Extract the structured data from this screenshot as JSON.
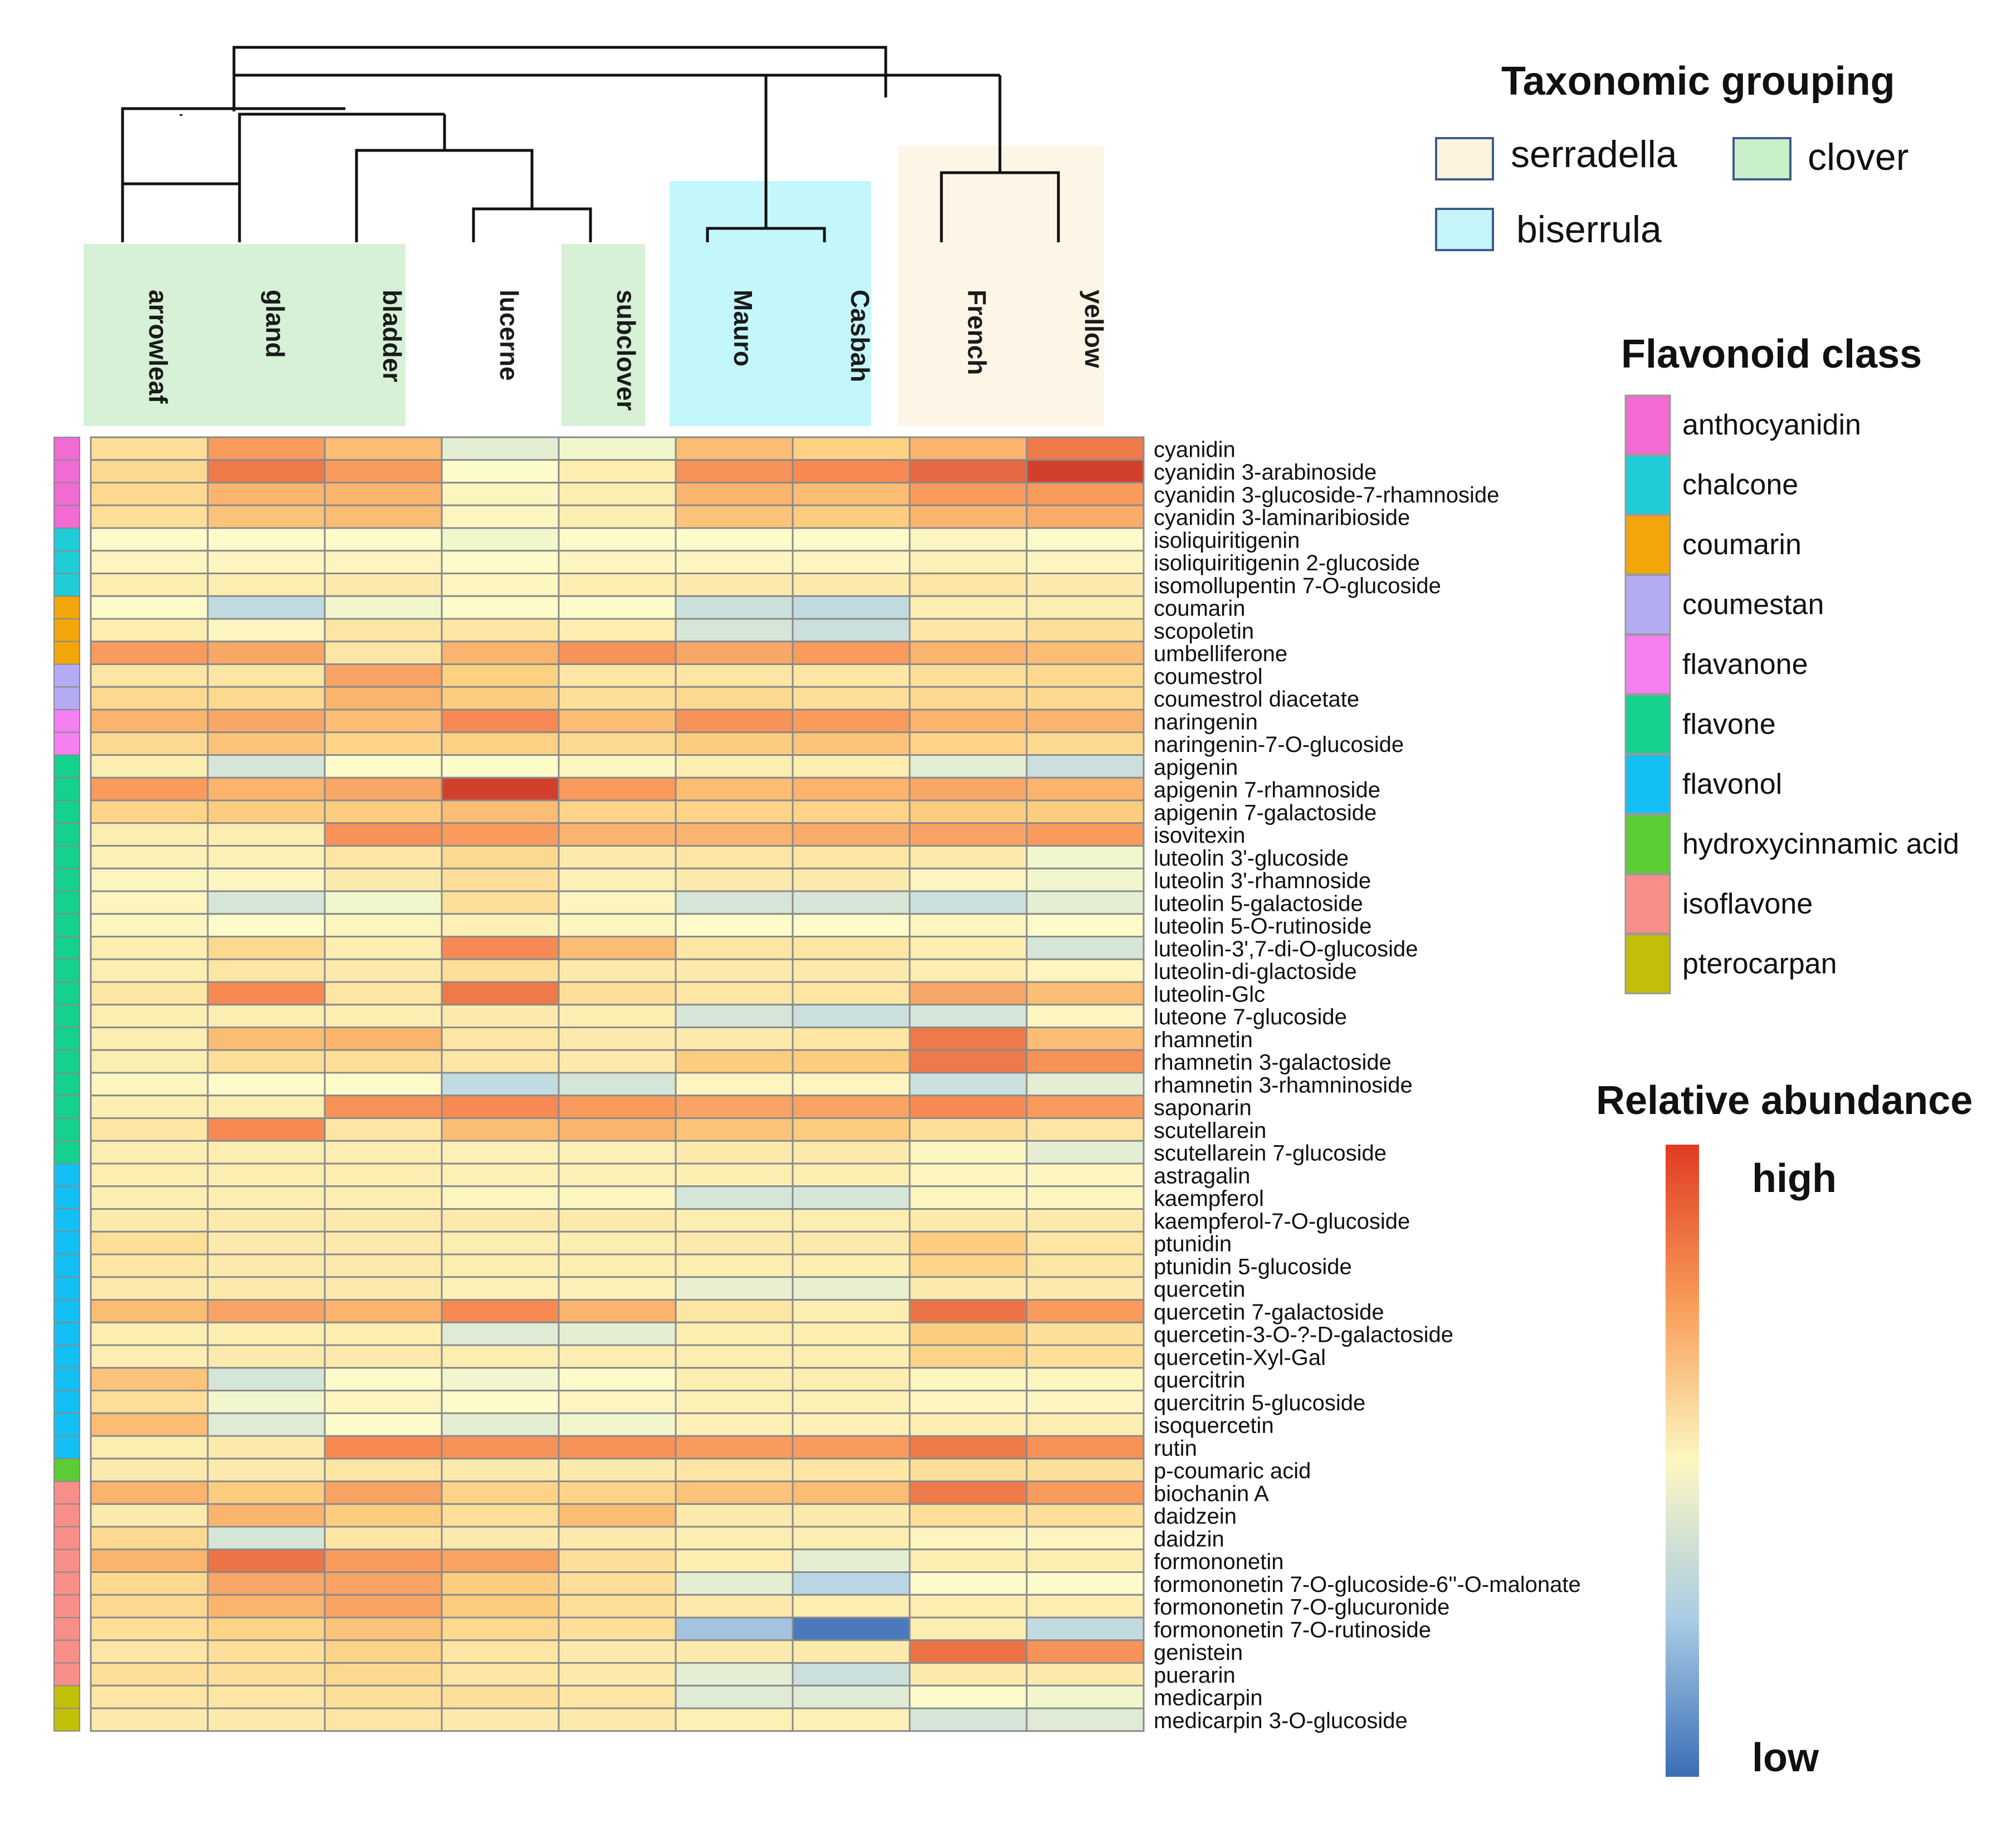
{
  "chart_data": {
    "type": "heatmap",
    "columns": [
      "arrowleaf",
      "gland",
      "bladder",
      "lucerne",
      "subclover",
      "Mauro",
      "Casbah",
      "French",
      "yellow"
    ],
    "column_groups": [
      "clover",
      "clover",
      "clover",
      "none",
      "clover",
      "biserrula",
      "biserrula",
      "serradella",
      "serradella"
    ],
    "rows": [
      {
        "name": "cyanidin",
        "class": "anthocyanidin",
        "values": [
          0.6,
          0.78,
          0.7,
          0.45,
          0.48,
          0.7,
          0.65,
          0.72,
          0.85
        ]
      },
      {
        "name": "cyanidin 3-arabinoside",
        "class": "anthocyanidin",
        "values": [
          0.62,
          0.85,
          0.78,
          0.5,
          0.55,
          0.8,
          0.82,
          0.88,
          0.95
        ]
      },
      {
        "name": "cyanidin 3-glucoside-7-rhamnoside",
        "class": "anthocyanidin",
        "values": [
          0.62,
          0.72,
          0.72,
          0.52,
          0.55,
          0.72,
          0.7,
          0.78,
          0.78
        ]
      },
      {
        "name": "cyanidin 3-laminaribioside",
        "class": "anthocyanidin",
        "values": [
          0.6,
          0.68,
          0.7,
          0.52,
          0.55,
          0.68,
          0.66,
          0.72,
          0.74
        ]
      },
      {
        "name": "isoliquiritigenin",
        "class": "chalcone",
        "values": [
          0.5,
          0.5,
          0.5,
          0.48,
          0.5,
          0.5,
          0.5,
          0.52,
          0.5
        ]
      },
      {
        "name": "isoliquiritigenin 2-glucoside",
        "class": "chalcone",
        "values": [
          0.52,
          0.52,
          0.52,
          0.5,
          0.52,
          0.52,
          0.52,
          0.54,
          0.52
        ]
      },
      {
        "name": "isomollupentin 7-O-glucoside",
        "class": "chalcone",
        "values": [
          0.55,
          0.55,
          0.56,
          0.52,
          0.55,
          0.56,
          0.56,
          0.58,
          0.56
        ]
      },
      {
        "name": "coumarin",
        "class": "coumarin",
        "values": [
          0.5,
          0.38,
          0.48,
          0.5,
          0.5,
          0.4,
          0.38,
          0.55,
          0.55
        ]
      },
      {
        "name": "scopoletin",
        "class": "coumarin",
        "values": [
          0.55,
          0.52,
          0.58,
          0.58,
          0.55,
          0.42,
          0.4,
          0.58,
          0.6
        ]
      },
      {
        "name": "umbelliferone",
        "class": "coumarin",
        "values": [
          0.78,
          0.75,
          0.58,
          0.72,
          0.8,
          0.75,
          0.78,
          0.72,
          0.7
        ]
      },
      {
        "name": "coumestrol",
        "class": "coumestan",
        "values": [
          0.58,
          0.58,
          0.76,
          0.65,
          0.58,
          0.58,
          0.58,
          0.6,
          0.62
        ]
      },
      {
        "name": "coumestrol diacetate",
        "class": "coumestan",
        "values": [
          0.62,
          0.62,
          0.72,
          0.66,
          0.6,
          0.62,
          0.6,
          0.62,
          0.62
        ]
      },
      {
        "name": "naringenin",
        "class": "flavanone",
        "values": [
          0.72,
          0.75,
          0.7,
          0.82,
          0.7,
          0.8,
          0.78,
          0.72,
          0.72
        ]
      },
      {
        "name": "naringenin-7-O-glucoside",
        "class": "flavanone",
        "values": [
          0.62,
          0.68,
          0.64,
          0.65,
          0.62,
          0.66,
          0.68,
          0.64,
          0.62
        ]
      },
      {
        "name": "apigenin",
        "class": "flavone",
        "values": [
          0.55,
          0.42,
          0.5,
          0.5,
          0.52,
          0.55,
          0.55,
          0.45,
          0.4
        ]
      },
      {
        "name": "apigenin 7-rhamnoside",
        "class": "flavone",
        "values": [
          0.78,
          0.72,
          0.75,
          0.95,
          0.78,
          0.7,
          0.72,
          0.75,
          0.72
        ]
      },
      {
        "name": "apigenin 7-galactoside",
        "class": "flavone",
        "values": [
          0.64,
          0.66,
          0.66,
          0.7,
          0.64,
          0.64,
          0.64,
          0.66,
          0.66
        ]
      },
      {
        "name": "isovitexin",
        "class": "flavone",
        "values": [
          0.55,
          0.55,
          0.8,
          0.78,
          0.72,
          0.72,
          0.74,
          0.76,
          0.78
        ]
      },
      {
        "name": "luteolin 3'-glucoside",
        "class": "flavone",
        "values": [
          0.54,
          0.54,
          0.58,
          0.62,
          0.56,
          0.58,
          0.58,
          0.56,
          0.48
        ]
      },
      {
        "name": "luteolin 3'-rhamnoside",
        "class": "flavone",
        "values": [
          0.52,
          0.52,
          0.56,
          0.6,
          0.54,
          0.56,
          0.56,
          0.52,
          0.48
        ]
      },
      {
        "name": "luteolin 5-galactoside",
        "class": "flavone",
        "values": [
          0.52,
          0.42,
          0.48,
          0.6,
          0.52,
          0.42,
          0.42,
          0.4,
          0.45
        ]
      },
      {
        "name": "luteolin 5-O-rutinoside",
        "class": "flavone",
        "values": [
          0.52,
          0.5,
          0.52,
          0.54,
          0.52,
          0.5,
          0.5,
          0.52,
          0.5
        ]
      },
      {
        "name": "luteolin-3',7-di-O-glucoside",
        "class": "flavone",
        "values": [
          0.55,
          0.62,
          0.55,
          0.82,
          0.7,
          0.58,
          0.58,
          0.55,
          0.42
        ]
      },
      {
        "name": "luteolin-di-glactoside",
        "class": "flavone",
        "values": [
          0.55,
          0.58,
          0.56,
          0.6,
          0.56,
          0.56,
          0.56,
          0.55,
          0.52
        ]
      },
      {
        "name": "luteolin-Glc",
        "class": "flavone",
        "values": [
          0.58,
          0.82,
          0.58,
          0.85,
          0.6,
          0.58,
          0.58,
          0.75,
          0.7
        ]
      },
      {
        "name": "luteone 7-glucoside",
        "class": "flavone",
        "values": [
          0.55,
          0.55,
          0.55,
          0.56,
          0.55,
          0.42,
          0.4,
          0.42,
          0.52
        ]
      },
      {
        "name": "rhamnetin",
        "class": "flavone",
        "values": [
          0.55,
          0.7,
          0.72,
          0.58,
          0.56,
          0.56,
          0.58,
          0.85,
          0.7
        ]
      },
      {
        "name": "rhamnetin 3-galactoside",
        "class": "flavone",
        "values": [
          0.55,
          0.6,
          0.6,
          0.58,
          0.56,
          0.66,
          0.66,
          0.85,
          0.8
        ]
      },
      {
        "name": "rhamnetin 3-rhamninoside",
        "class": "flavone",
        "values": [
          0.52,
          0.5,
          0.5,
          0.38,
          0.42,
          0.52,
          0.52,
          0.4,
          0.45
        ]
      },
      {
        "name": "saponarin",
        "class": "flavone",
        "values": [
          0.55,
          0.55,
          0.8,
          0.82,
          0.78,
          0.76,
          0.76,
          0.82,
          0.78
        ]
      },
      {
        "name": "scutellarein",
        "class": "flavone",
        "values": [
          0.58,
          0.82,
          0.58,
          0.7,
          0.72,
          0.68,
          0.66,
          0.6,
          0.58
        ]
      },
      {
        "name": "scutellarein 7-glucoside",
        "class": "flavone",
        "values": [
          0.55,
          0.55,
          0.55,
          0.54,
          0.54,
          0.56,
          0.56,
          0.52,
          0.45
        ]
      },
      {
        "name": "astragalin",
        "class": "flavonol",
        "values": [
          0.55,
          0.55,
          0.55,
          0.54,
          0.54,
          0.55,
          0.55,
          0.52,
          0.52
        ]
      },
      {
        "name": "kaempferol",
        "class": "flavonol",
        "values": [
          0.55,
          0.55,
          0.55,
          0.52,
          0.52,
          0.42,
          0.42,
          0.52,
          0.52
        ]
      },
      {
        "name": "kaempferol-7-O-glucoside",
        "class": "flavonol",
        "values": [
          0.56,
          0.56,
          0.56,
          0.56,
          0.56,
          0.55,
          0.55,
          0.56,
          0.56
        ]
      },
      {
        "name": "ptunidin",
        "class": "flavonol",
        "values": [
          0.6,
          0.56,
          0.56,
          0.55,
          0.55,
          0.56,
          0.56,
          0.66,
          0.58
        ]
      },
      {
        "name": "ptunidin 5-glucoside",
        "class": "flavonol",
        "values": [
          0.58,
          0.56,
          0.56,
          0.55,
          0.55,
          0.55,
          0.55,
          0.64,
          0.58
        ]
      },
      {
        "name": "quercetin",
        "class": "flavonol",
        "values": [
          0.56,
          0.56,
          0.56,
          0.54,
          0.54,
          0.46,
          0.46,
          0.56,
          0.56
        ]
      },
      {
        "name": "quercetin 7-galactoside",
        "class": "flavonol",
        "values": [
          0.7,
          0.76,
          0.72,
          0.82,
          0.72,
          0.58,
          0.55,
          0.86,
          0.78
        ]
      },
      {
        "name": "quercetin-3-O-?-D-galactoside",
        "class": "flavonol",
        "values": [
          0.55,
          0.55,
          0.55,
          0.44,
          0.45,
          0.55,
          0.55,
          0.66,
          0.6
        ]
      },
      {
        "name": "quercetin-Xyl-Gal",
        "class": "flavonol",
        "values": [
          0.55,
          0.56,
          0.56,
          0.55,
          0.55,
          0.55,
          0.55,
          0.64,
          0.6
        ]
      },
      {
        "name": "quercitrin",
        "class": "flavonol",
        "values": [
          0.68,
          0.42,
          0.5,
          0.48,
          0.5,
          0.55,
          0.55,
          0.52,
          0.52
        ]
      },
      {
        "name": "quercitrin 5-glucoside",
        "class": "flavonol",
        "values": [
          0.6,
          0.48,
          0.52,
          0.5,
          0.52,
          0.54,
          0.54,
          0.52,
          0.52
        ]
      },
      {
        "name": "isoquercetin",
        "class": "flavonol",
        "values": [
          0.7,
          0.44,
          0.5,
          0.45,
          0.48,
          0.54,
          0.54,
          0.55,
          0.55
        ]
      },
      {
        "name": "rutin",
        "class": "flavonol",
        "values": [
          0.55,
          0.56,
          0.82,
          0.8,
          0.8,
          0.78,
          0.78,
          0.85,
          0.8
        ]
      },
      {
        "name": "p-coumaric acid",
        "class": "hydroxycinnamic acid",
        "values": [
          0.56,
          0.56,
          0.58,
          0.56,
          0.56,
          0.58,
          0.58,
          0.6,
          0.6
        ]
      },
      {
        "name": "biochanin A",
        "class": "isoflavone",
        "values": [
          0.72,
          0.66,
          0.76,
          0.64,
          0.64,
          0.68,
          0.7,
          0.85,
          0.78
        ]
      },
      {
        "name": "daidzein",
        "class": "isoflavone",
        "values": [
          0.56,
          0.72,
          0.66,
          0.6,
          0.7,
          0.56,
          0.56,
          0.6,
          0.6
        ]
      },
      {
        "name": "daidzin",
        "class": "isoflavone",
        "values": [
          0.62,
          0.42,
          0.58,
          0.56,
          0.56,
          0.55,
          0.55,
          0.52,
          0.52
        ]
      },
      {
        "name": "formononetin",
        "class": "isoflavone",
        "values": [
          0.72,
          0.86,
          0.78,
          0.76,
          0.6,
          0.55,
          0.45,
          0.55,
          0.55
        ]
      },
      {
        "name": "formononetin 7-O-glucoside-6''-O-malonate",
        "class": "isoflavone",
        "values": [
          0.62,
          0.75,
          0.76,
          0.66,
          0.6,
          0.45,
          0.36,
          0.5,
          0.5
        ]
      },
      {
        "name": "formononetin 7-O-glucuronide",
        "class": "isoflavone",
        "values": [
          0.62,
          0.72,
          0.76,
          0.66,
          0.6,
          0.56,
          0.55,
          0.55,
          0.55
        ]
      },
      {
        "name": "formononetin 7-O-rutinoside",
        "class": "isoflavone",
        "values": [
          0.6,
          0.64,
          0.68,
          0.62,
          0.6,
          0.3,
          0.05,
          0.55,
          0.38
        ]
      },
      {
        "name": "genistein",
        "class": "isoflavone",
        "values": [
          0.58,
          0.6,
          0.64,
          0.58,
          0.56,
          0.56,
          0.56,
          0.86,
          0.8
        ]
      },
      {
        "name": "puerarin",
        "class": "isoflavone",
        "values": [
          0.6,
          0.6,
          0.62,
          0.58,
          0.56,
          0.45,
          0.4,
          0.56,
          0.56
        ]
      },
      {
        "name": "medicarpin",
        "class": "pterocarpan",
        "values": [
          0.58,
          0.58,
          0.6,
          0.6,
          0.58,
          0.44,
          0.44,
          0.5,
          0.48
        ]
      },
      {
        "name": "medicarpin 3-O-glucoside",
        "class": "pterocarpan",
        "values": [
          0.56,
          0.56,
          0.58,
          0.56,
          0.56,
          0.54,
          0.54,
          0.42,
          0.44
        ]
      }
    ]
  },
  "legends": {
    "taxonomic": {
      "title": "Taxonomic grouping",
      "items": [
        {
          "label": "serradella",
          "color": "#fdf3dc"
        },
        {
          "label": "clover",
          "color": "#c8efc8"
        },
        {
          "label": "biserrula",
          "color": "#c4f5fa"
        }
      ]
    },
    "flavonoid": {
      "title": "Flavonoid class",
      "items": [
        {
          "label": "anthocyanidin",
          "color": "#f26ad3"
        },
        {
          "label": "chalcone",
          "color": "#1ecdd8"
        },
        {
          "label": "coumarin",
          "color": "#f3a60a"
        },
        {
          "label": "coumestan",
          "color": "#b3acf5"
        },
        {
          "label": "flavanone",
          "color": "#f47ff1"
        },
        {
          "label": "flavone",
          "color": "#14d18d"
        },
        {
          "label": "flavonol",
          "color": "#12c0f6"
        },
        {
          "label": "hydroxycinnamic acid",
          "color": "#5acd34"
        },
        {
          "label": "isoflavone",
          "color": "#f88e88"
        },
        {
          "label": "pterocarpan",
          "color": "#c2bf08"
        }
      ]
    },
    "abundance": {
      "title": "Relative abundance",
      "high_label": "high",
      "low_label": "low"
    }
  },
  "colors": {
    "group_bg": {
      "clover": "#d6f1d6",
      "biserrula": "#c4f7fb",
      "serradella": "#fdf5e6"
    },
    "scale": [
      "#3a6bb5",
      "#b3d3e6",
      "#fcfbc9",
      "#fdd182",
      "#f68a52",
      "#c4241d"
    ]
  }
}
